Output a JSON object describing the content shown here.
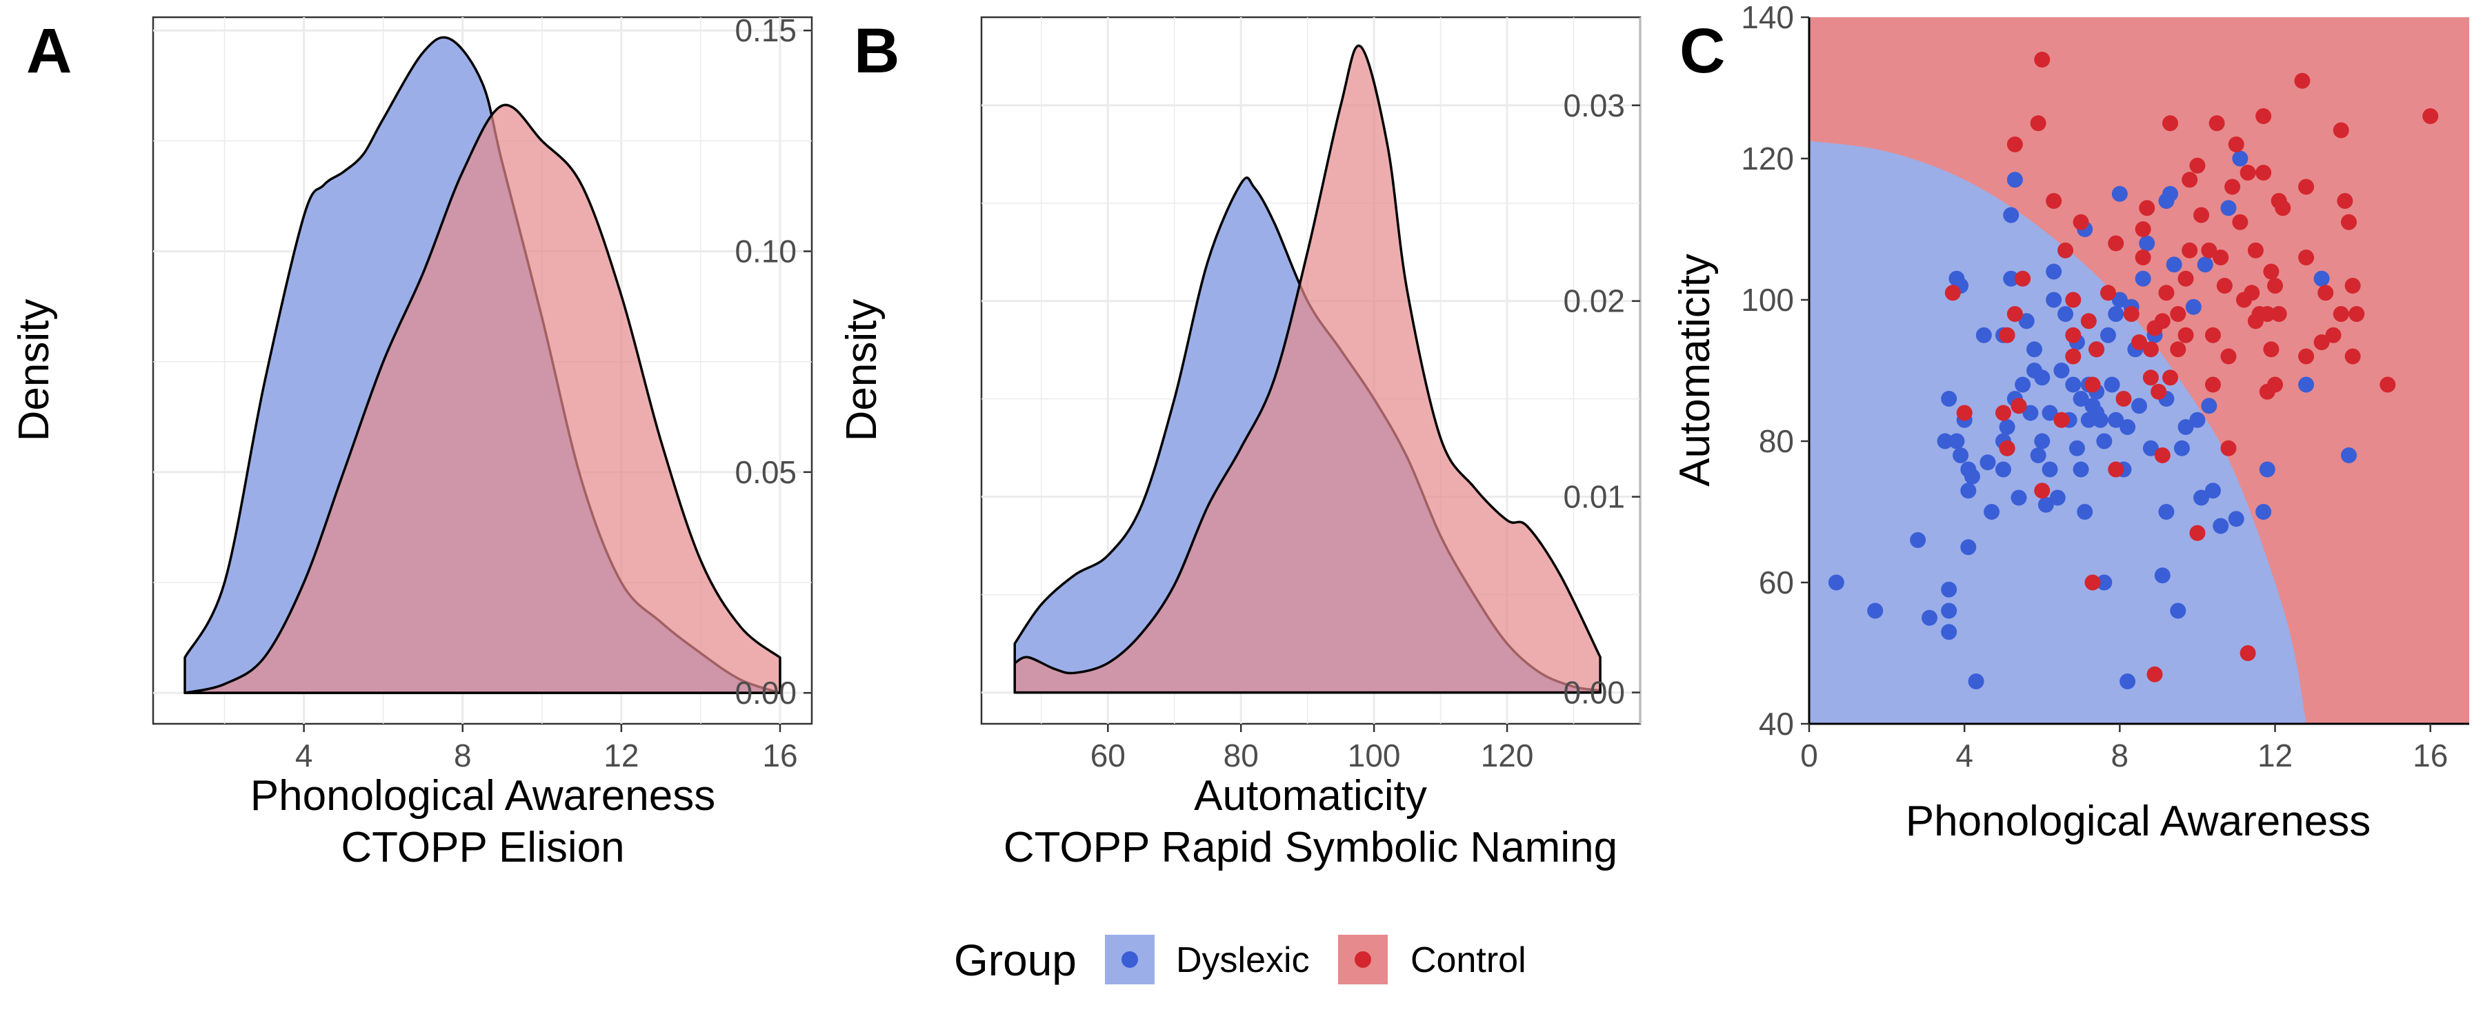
{
  "colors": {
    "dyslexic_fill": "#9BAEE8",
    "control_fill": "#E68A8D",
    "overlap_fill": "#B06580",
    "dyslexic_point": "#3A5ED6",
    "control_point": "#D4262E",
    "grid": "#EBEBEB",
    "axis": "#333333",
    "text": "#000000"
  },
  "legend": {
    "title": "Group",
    "items": [
      {
        "label": "Dyslexic",
        "color_key": "dyslexic"
      },
      {
        "label": "Control",
        "color_key": "control"
      }
    ],
    "placement": "bottom-center"
  },
  "chart_data": [
    {
      "panel_label": "A",
      "type": "area",
      "subtype": "density",
      "xlabel": "Phonological Awareness",
      "xlabel2": "CTOPP Elision",
      "ylabel": "Density",
      "xlim": [
        0.2,
        16.8
      ],
      "ylim": [
        -0.007,
        0.153
      ],
      "x_ticks": [
        4,
        8,
        12,
        16
      ],
      "y_ticks": [
        0.0,
        0.05,
        0.1,
        0.15
      ],
      "y_tick_labels": [
        "0.00",
        "0.05",
        "0.10",
        "0.15"
      ],
      "grid": true,
      "series": [
        {
          "name": "Dyslexic",
          "x": [
            1,
            2,
            3,
            4,
            4.5,
            5,
            5.5,
            6,
            7,
            7.7,
            8.5,
            9,
            10,
            11,
            12,
            13,
            14,
            15,
            16
          ],
          "y": [
            0.008,
            0.025,
            0.07,
            0.108,
            0.115,
            0.118,
            0.122,
            0.13,
            0.145,
            0.148,
            0.138,
            0.12,
            0.085,
            0.048,
            0.025,
            0.016,
            0.009,
            0.003,
            0
          ]
        },
        {
          "name": "Control",
          "x": [
            1,
            2,
            3,
            4,
            5,
            6,
            7,
            8,
            9,
            10,
            11,
            12,
            13,
            14,
            15,
            16
          ],
          "y": [
            0,
            0.002,
            0.008,
            0.025,
            0.05,
            0.075,
            0.095,
            0.118,
            0.133,
            0.125,
            0.115,
            0.09,
            0.057,
            0.03,
            0.015,
            0.008
          ]
        }
      ]
    },
    {
      "panel_label": "B",
      "type": "area",
      "subtype": "density",
      "xlabel": "Automaticity",
      "xlabel2": "CTOPP Rapid Symbolic Naming",
      "ylabel": "Density",
      "xlim": [
        41,
        140
      ],
      "ylim": [
        -0.0016,
        0.0345
      ],
      "x_ticks": [
        60,
        80,
        100,
        120
      ],
      "y_ticks": [
        0.0,
        0.01,
        0.02,
        0.03
      ],
      "y_tick_labels": [
        "0.00",
        "0.01",
        "0.02",
        "0.03"
      ],
      "grid": true,
      "series": [
        {
          "name": "Dyslexic",
          "x": [
            46,
            50,
            55,
            60,
            65,
            70,
            75,
            80,
            82,
            85,
            90,
            95,
            100,
            105,
            110,
            115,
            120,
            125,
            130,
            134
          ],
          "y": [
            0.0025,
            0.0045,
            0.006,
            0.007,
            0.0095,
            0.015,
            0.022,
            0.026,
            0.0258,
            0.024,
            0.02,
            0.0175,
            0.015,
            0.012,
            0.008,
            0.005,
            0.0025,
            0.001,
            0.0003,
            0.0001
          ]
        },
        {
          "name": "Control",
          "x": [
            46,
            48,
            52,
            55,
            60,
            65,
            70,
            75,
            80,
            85,
            90,
            95,
            98,
            102,
            105,
            110,
            115,
            120,
            123,
            128,
            134
          ],
          "y": [
            0.0015,
            0.0018,
            0.0012,
            0.001,
            0.0015,
            0.003,
            0.0055,
            0.0095,
            0.0125,
            0.016,
            0.0225,
            0.03,
            0.033,
            0.028,
            0.0205,
            0.013,
            0.0105,
            0.0088,
            0.0085,
            0.006,
            0.0018
          ]
        }
      ]
    },
    {
      "panel_label": "C",
      "type": "scatter",
      "xlabel": "Phonological Awareness",
      "ylabel": "Automaticity",
      "xlim": [
        0,
        17
      ],
      "ylim": [
        40,
        140
      ],
      "x_ticks": [
        0,
        4,
        8,
        12,
        16
      ],
      "y_ticks": [
        40,
        60,
        80,
        100,
        120,
        140
      ],
      "grid": false,
      "decision_boundary": {
        "description": "Dyslexic region lower-left, Control region elsewhere",
        "x": [
          0,
          2,
          4,
          6,
          8,
          10,
          11,
          12,
          12.5,
          12.8
        ],
        "y": [
          122.5,
          121,
          117,
          110,
          100,
          85,
          75,
          60,
          50,
          40
        ]
      },
      "series": [
        {
          "name": "Dyslexic",
          "points": [
            [
              0.7,
              60
            ],
            [
              1.7,
              56
            ],
            [
              2.8,
              66
            ],
            [
              3.1,
              55
            ],
            [
              3.5,
              80
            ],
            [
              3.6,
              86
            ],
            [
              3.6,
              59
            ],
            [
              3.6,
              56
            ],
            [
              3.6,
              53
            ],
            [
              3.8,
              103
            ],
            [
              3.8,
              80
            ],
            [
              3.9,
              78
            ],
            [
              3.9,
              102
            ],
            [
              4.0,
              83
            ],
            [
              4.1,
              65
            ],
            [
              4.1,
              76
            ],
            [
              4.1,
              73
            ],
            [
              4.2,
              75
            ],
            [
              4.3,
              46
            ],
            [
              4.5,
              95
            ],
            [
              4.6,
              77
            ],
            [
              4.7,
              70
            ],
            [
              5.0,
              95
            ],
            [
              5.0,
              80
            ],
            [
              5.0,
              76
            ],
            [
              5.1,
              82
            ],
            [
              5.1,
              79
            ],
            [
              5.2,
              103
            ],
            [
              5.2,
              112
            ],
            [
              5.3,
              117
            ],
            [
              5.3,
              86
            ],
            [
              5.4,
              72
            ],
            [
              5.4,
              85
            ],
            [
              5.5,
              88
            ],
            [
              5.6,
              97
            ],
            [
              5.7,
              84
            ],
            [
              5.8,
              93
            ],
            [
              5.8,
              90
            ],
            [
              5.9,
              78
            ],
            [
              6.0,
              89
            ],
            [
              6.0,
              80
            ],
            [
              6.1,
              71
            ],
            [
              6.2,
              84
            ],
            [
              6.2,
              76
            ],
            [
              6.3,
              104
            ],
            [
              6.3,
              100
            ],
            [
              6.4,
              72
            ],
            [
              6.5,
              90
            ],
            [
              6.6,
              98
            ],
            [
              6.7,
              83
            ],
            [
              6.8,
              88
            ],
            [
              6.9,
              94
            ],
            [
              6.9,
              79
            ],
            [
              7.0,
              86
            ],
            [
              7.0,
              76
            ],
            [
              7.1,
              110
            ],
            [
              7.1,
              70
            ],
            [
              7.2,
              83
            ],
            [
              7.2,
              88
            ],
            [
              7.3,
              85
            ],
            [
              7.4,
              84
            ],
            [
              7.4,
              93
            ],
            [
              7.4,
              87
            ],
            [
              7.5,
              83
            ],
            [
              7.6,
              60
            ],
            [
              7.6,
              80
            ],
            [
              7.7,
              95
            ],
            [
              7.8,
              88
            ],
            [
              7.9,
              98
            ],
            [
              7.9,
              83
            ],
            [
              8.0,
              100
            ],
            [
              8.0,
              115
            ],
            [
              8.1,
              76
            ],
            [
              8.2,
              46
            ],
            [
              8.2,
              82
            ],
            [
              8.3,
              99
            ],
            [
              8.4,
              93
            ],
            [
              8.5,
              85
            ],
            [
              8.6,
              103
            ],
            [
              8.7,
              108
            ],
            [
              8.8,
              79
            ],
            [
              8.9,
              95
            ],
            [
              9.1,
              61
            ],
            [
              9.2,
              70
            ],
            [
              9.2,
              86
            ],
            [
              9.2,
              114
            ],
            [
              9.3,
              115
            ],
            [
              9.4,
              105
            ],
            [
              9.5,
              56
            ],
            [
              9.6,
              79
            ],
            [
              9.7,
              82
            ],
            [
              9.9,
              99
            ],
            [
              10.0,
              83
            ],
            [
              10.1,
              72
            ],
            [
              10.2,
              105
            ],
            [
              10.3,
              85
            ],
            [
              10.4,
              73
            ],
            [
              10.6,
              68
            ],
            [
              10.8,
              113
            ],
            [
              11.0,
              69
            ],
            [
              11.1,
              120
            ],
            [
              11.7,
              70
            ],
            [
              11.8,
              76
            ],
            [
              12.8,
              88
            ],
            [
              13.2,
              103
            ],
            [
              13.9,
              78
            ]
          ]
        },
        {
          "name": "Control",
          "points": [
            [
              3.7,
              101
            ],
            [
              4.0,
              84
            ],
            [
              5.0,
              84
            ],
            [
              5.1,
              79
            ],
            [
              5.1,
              95
            ],
            [
              5.3,
              122
            ],
            [
              5.3,
              98
            ],
            [
              5.4,
              85
            ],
            [
              5.5,
              103
            ],
            [
              5.9,
              125
            ],
            [
              6.0,
              134
            ],
            [
              6.0,
              73
            ],
            [
              6.3,
              114
            ],
            [
              6.5,
              83
            ],
            [
              6.6,
              107
            ],
            [
              6.8,
              100
            ],
            [
              6.8,
              92
            ],
            [
              6.8,
              95
            ],
            [
              7.0,
              111
            ],
            [
              7.2,
              97
            ],
            [
              7.3,
              60
            ],
            [
              7.3,
              88
            ],
            [
              7.4,
              93
            ],
            [
              7.7,
              101
            ],
            [
              7.9,
              108
            ],
            [
              7.9,
              76
            ],
            [
              8.1,
              86
            ],
            [
              8.3,
              98
            ],
            [
              8.5,
              94
            ],
            [
              8.6,
              106
            ],
            [
              8.6,
              110
            ],
            [
              8.7,
              113
            ],
            [
              8.8,
              93
            ],
            [
              8.8,
              89
            ],
            [
              8.9,
              96
            ],
            [
              8.9,
              47
            ],
            [
              9.0,
              87
            ],
            [
              9.1,
              97
            ],
            [
              9.1,
              78
            ],
            [
              9.2,
              101
            ],
            [
              9.3,
              89
            ],
            [
              9.3,
              125
            ],
            [
              9.5,
              98
            ],
            [
              9.5,
              93
            ],
            [
              9.7,
              95
            ],
            [
              9.7,
              103
            ],
            [
              9.8,
              117
            ],
            [
              9.8,
              107
            ],
            [
              10.0,
              119
            ],
            [
              10.0,
              67
            ],
            [
              10.1,
              112
            ],
            [
              10.3,
              107
            ],
            [
              10.4,
              95
            ],
            [
              10.4,
              88
            ],
            [
              10.5,
              125
            ],
            [
              10.6,
              106
            ],
            [
              10.7,
              102
            ],
            [
              10.8,
              92
            ],
            [
              10.8,
              79
            ],
            [
              10.9,
              116
            ],
            [
              11.0,
              122
            ],
            [
              11.1,
              111
            ],
            [
              11.2,
              100
            ],
            [
              11.3,
              50
            ],
            [
              11.3,
              118
            ],
            [
              11.4,
              101
            ],
            [
              11.5,
              107
            ],
            [
              11.5,
              97
            ],
            [
              11.6,
              98
            ],
            [
              11.7,
              126
            ],
            [
              11.7,
              118
            ],
            [
              11.8,
              87
            ],
            [
              11.8,
              98
            ],
            [
              11.9,
              104
            ],
            [
              11.9,
              93
            ],
            [
              12.0,
              102
            ],
            [
              12.0,
              88
            ],
            [
              12.1,
              98
            ],
            [
              12.1,
              114
            ],
            [
              12.2,
              113
            ],
            [
              12.7,
              131
            ],
            [
              12.8,
              106
            ],
            [
              12.8,
              92
            ],
            [
              12.8,
              116
            ],
            [
              13.2,
              94
            ],
            [
              13.3,
              101
            ],
            [
              13.5,
              95
            ],
            [
              13.7,
              98
            ],
            [
              13.7,
              124
            ],
            [
              13.8,
              114
            ],
            [
              13.9,
              111
            ],
            [
              14.0,
              92
            ],
            [
              14.0,
              102
            ],
            [
              14.1,
              98
            ],
            [
              14.9,
              88
            ],
            [
              16.0,
              126
            ]
          ]
        }
      ]
    }
  ]
}
